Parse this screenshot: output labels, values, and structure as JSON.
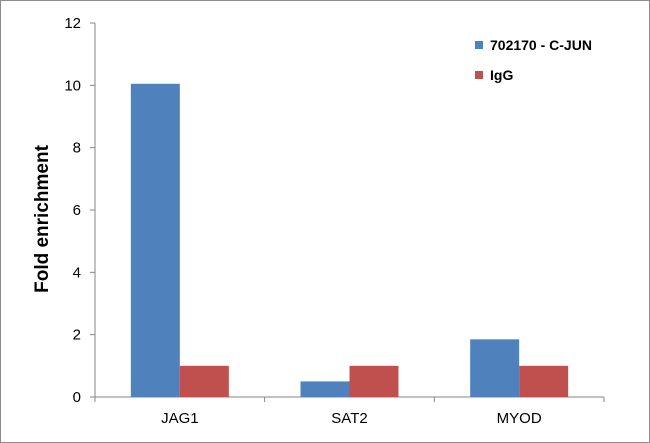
{
  "chart_data": {
    "type": "bar",
    "categories": [
      "JAG1",
      "SAT2",
      "MYOD"
    ],
    "series": [
      {
        "name": "702170 - C-JUN",
        "values": [
          10.05,
          0.5,
          1.85
        ],
        "color": "#4F81BD"
      },
      {
        "name": "IgG",
        "values": [
          1.0,
          1.0,
          1.0
        ],
        "color": "#C0504D"
      }
    ],
    "title": "",
    "xlabel": "",
    "ylabel": "Fold enrichment",
    "ylim": [
      0,
      12
    ],
    "yticks": [
      0,
      2,
      4,
      6,
      8,
      10,
      12
    ],
    "grid": false,
    "legend_position": "top-right"
  }
}
